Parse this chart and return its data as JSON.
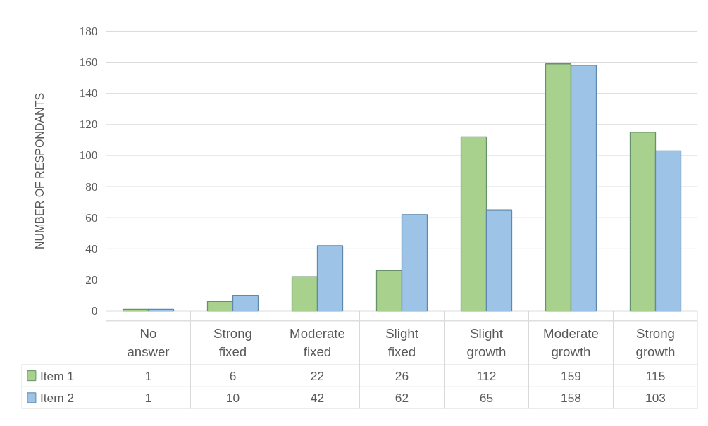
{
  "chart_data": {
    "type": "bar",
    "ylabel": "NUMBER OF RESPONDANTS",
    "categories": [
      "No answer",
      "Strong fixed",
      "Moderate fixed",
      "Slight fixed",
      "Slight growth",
      "Moderate growth",
      "Strong growth"
    ],
    "series": [
      {
        "name": "Item 1",
        "color": "#a9d18e",
        "values": [
          1,
          6,
          22,
          26,
          112,
          159,
          115
        ]
      },
      {
        "name": "Item 2",
        "color": "#9dc3e6",
        "values": [
          1,
          10,
          42,
          62,
          65,
          158,
          103
        ]
      }
    ],
    "ylim": [
      0,
      180
    ],
    "yticks": [
      0,
      20,
      40,
      60,
      80,
      100,
      120,
      140,
      160,
      180
    ],
    "grid": "y",
    "legend": "bottom",
    "data_labels": true
  }
}
